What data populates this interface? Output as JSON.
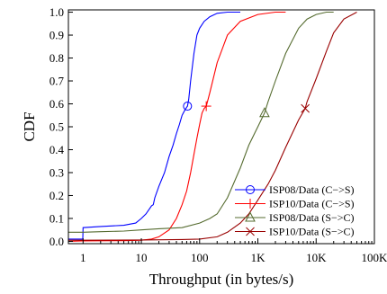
{
  "chart_data": {
    "type": "line",
    "title": "",
    "xlabel": "Throughput (in bytes/s)",
    "ylabel": "CDF",
    "xscale": "log",
    "xlim": [
      0.56,
      100000
    ],
    "ylim": [
      -0.01,
      1.01
    ],
    "xticks": [
      1,
      10,
      100,
      1000,
      10000,
      100000
    ],
    "xtick_labels": [
      "1",
      "10",
      "100",
      "1K",
      "10K",
      "100K"
    ],
    "yticks": [
      0.0,
      0.1,
      0.2,
      0.3,
      0.4,
      0.5,
      0.6,
      0.7,
      0.8,
      0.9,
      1.0
    ],
    "ytick_labels": [
      "0.0",
      "0.1",
      "0.2",
      "0.3",
      "0.4",
      "0.5",
      "0.6",
      "0.7",
      "0.8",
      "0.9",
      "1.0"
    ],
    "grid": false,
    "legend_position": "bottom-right",
    "series": [
      {
        "name": "ISP08/Data (C−>S)",
        "color": "#0000ff",
        "marker": "circle",
        "marker_at": [
          62,
          0.59
        ],
        "x": [
          0.56,
          0.97,
          0.99,
          1.0,
          2,
          5,
          8,
          10,
          12,
          15,
          16,
          17,
          20,
          25,
          30,
          35,
          40,
          45,
          50,
          55,
          60,
          62,
          65,
          70,
          80,
          90,
          100,
          120,
          150,
          200,
          300,
          500
        ],
        "y": [
          0.01,
          0.01,
          0.01,
          0.06,
          0.065,
          0.07,
          0.08,
          0.1,
          0.12,
          0.155,
          0.16,
          0.19,
          0.24,
          0.3,
          0.37,
          0.42,
          0.47,
          0.51,
          0.55,
          0.57,
          0.585,
          0.59,
          0.62,
          0.7,
          0.82,
          0.9,
          0.93,
          0.96,
          0.98,
          0.995,
          1.0,
          1.0
        ]
      },
      {
        "name": "ISP10/Data (C−>S)",
        "color": "#ff0000",
        "marker": "plus",
        "marker_at": [
          130,
          0.59
        ],
        "x": [
          0.56,
          1,
          5,
          10,
          15,
          20,
          30,
          40,
          50,
          60,
          70,
          80,
          90,
          100,
          110,
          120,
          130,
          150,
          200,
          300,
          500,
          1000,
          2000,
          3000
        ],
        "y": [
          0.0,
          0.002,
          0.003,
          0.005,
          0.01,
          0.02,
          0.05,
          0.1,
          0.16,
          0.22,
          0.3,
          0.38,
          0.45,
          0.51,
          0.56,
          0.58,
          0.59,
          0.65,
          0.78,
          0.9,
          0.96,
          0.99,
          1.0,
          1.0
        ]
      },
      {
        "name": "ISP08/Data (S−>C)",
        "color": "#556b2f",
        "marker": "triangle",
        "marker_at": [
          1300,
          0.56
        ],
        "x": [
          0.56,
          1,
          2,
          5,
          10,
          20,
          50,
          100,
          150,
          200,
          300,
          500,
          700,
          1000,
          1300,
          1500,
          2000,
          3000,
          5000,
          7000,
          10000,
          15000,
          20000
        ],
        "y": [
          0.04,
          0.04,
          0.042,
          0.045,
          0.05,
          0.055,
          0.06,
          0.08,
          0.1,
          0.12,
          0.19,
          0.32,
          0.42,
          0.5,
          0.56,
          0.61,
          0.7,
          0.82,
          0.93,
          0.97,
          0.99,
          1.0,
          1.0
        ]
      },
      {
        "name": "ISP10/Data (S−>C)",
        "color": "#990000",
        "marker": "x",
        "marker_at": [
          6500,
          0.58
        ],
        "x": [
          0.56,
          1,
          10,
          50,
          100,
          200,
          300,
          500,
          700,
          1000,
          1500,
          2000,
          3000,
          5000,
          6500,
          7000,
          10000,
          15000,
          20000,
          30000,
          50000
        ],
        "y": [
          0.005,
          0.005,
          0.006,
          0.008,
          0.01,
          0.02,
          0.04,
          0.08,
          0.12,
          0.18,
          0.25,
          0.31,
          0.41,
          0.53,
          0.58,
          0.61,
          0.71,
          0.83,
          0.91,
          0.97,
          1.0
        ]
      }
    ]
  }
}
